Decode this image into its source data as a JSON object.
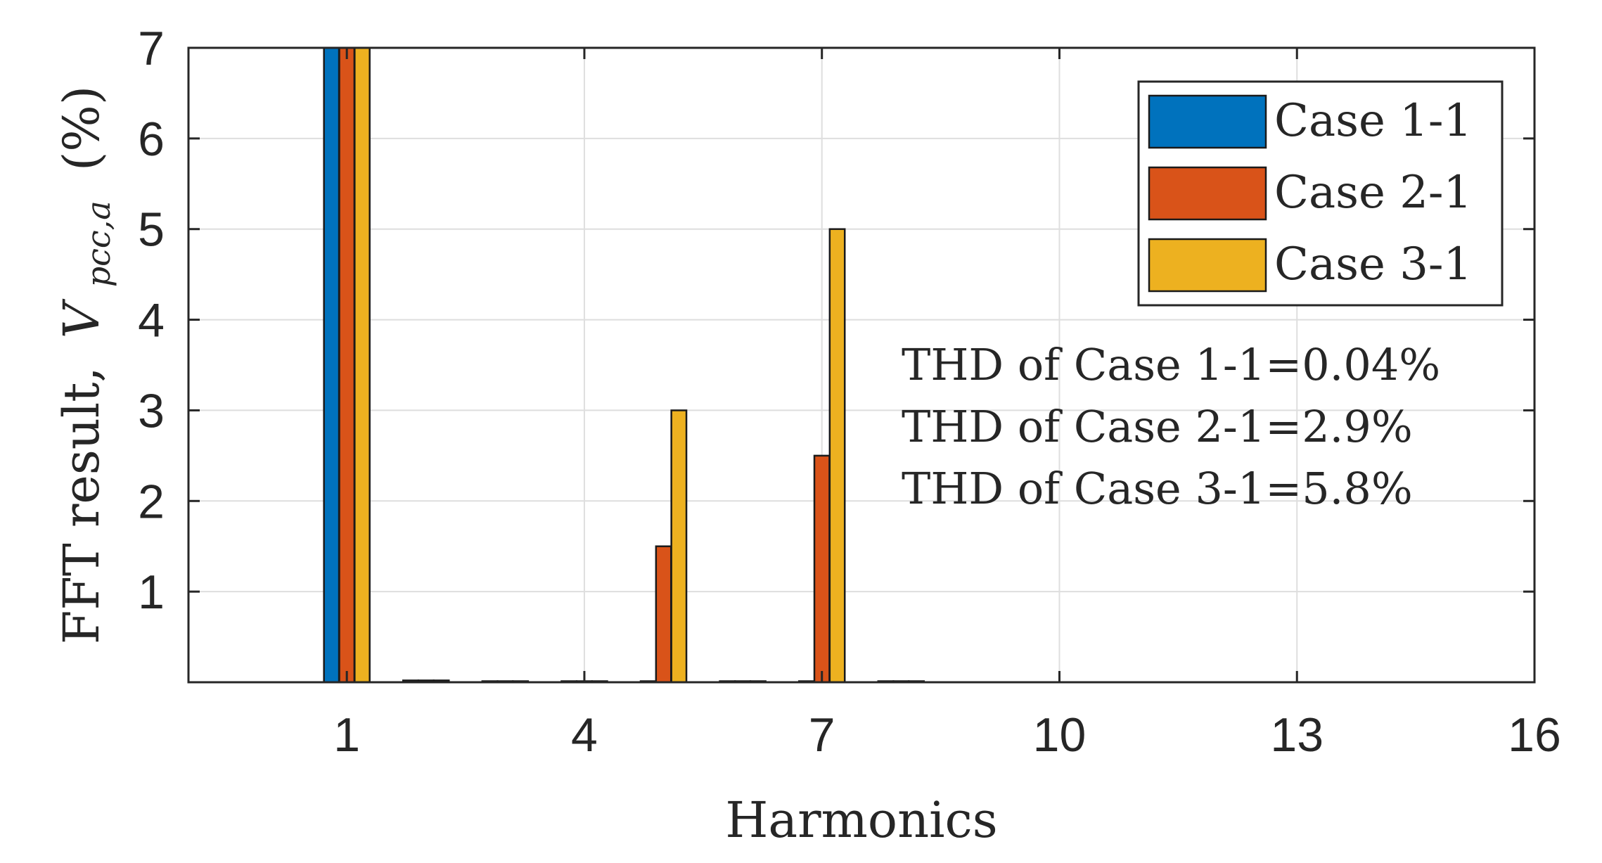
{
  "chart_data": {
    "type": "bar",
    "xlabel": "Harmonics",
    "ylabel": {
      "prefix": "FFT result,",
      "symbol": "V",
      "subscript": "pcc,a",
      "suffix": "(%)"
    },
    "xlim": [
      -1,
      16
    ],
    "ylim": [
      0,
      7
    ],
    "xticks": [
      "1",
      "4",
      "7",
      "10",
      "13",
      "16"
    ],
    "yticks": [
      "1",
      "2",
      "3",
      "4",
      "5",
      "6",
      "7"
    ],
    "grid": true,
    "legend_position": "top-right",
    "categories": [
      1,
      2,
      3,
      4,
      5,
      6,
      7,
      8
    ],
    "series": [
      {
        "name": "Case 1-1",
        "color": "#0072BD",
        "values": [
          7.0,
          0.02,
          0.01,
          0.01,
          0.01,
          0.01,
          0.01,
          0.0
        ]
      },
      {
        "name": "Case 2-1",
        "color": "#D95319",
        "values": [
          7.0,
          0.02,
          0.01,
          0.01,
          1.5,
          0.01,
          2.5,
          0.0
        ]
      },
      {
        "name": "Case 3-1",
        "color": "#EDB120",
        "values": [
          7.0,
          0.02,
          0.01,
          0.01,
          3.0,
          0.01,
          5.0,
          0.0
        ]
      }
    ],
    "annotations": [
      "THD of Case 1-1=0.04%",
      "THD of Case 2-1=2.9%",
      "THD of Case 3-1=5.8%"
    ]
  }
}
